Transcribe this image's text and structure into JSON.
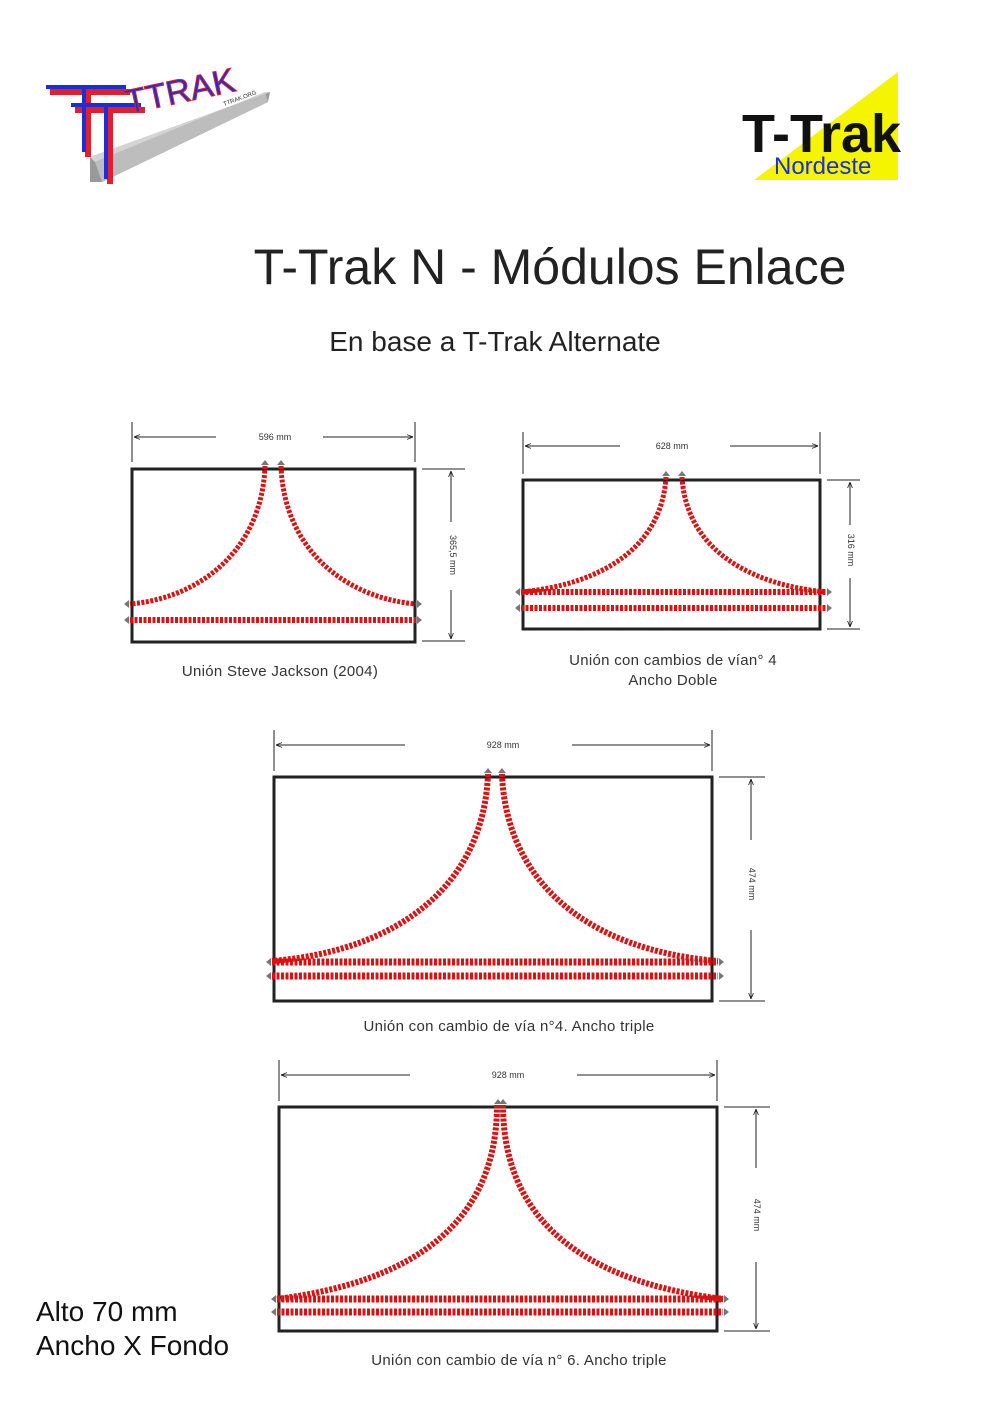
{
  "logos": {
    "left": {
      "text": "TTRAK",
      "small_text": "TTRAK.ORG"
    },
    "right": {
      "main": "T-Trak",
      "sub": "Nordeste"
    }
  },
  "title": "T-Trak N - Módulos Enlace",
  "subtitle": "En base a T-Trak Alternate",
  "modules": [
    {
      "width_label": "596 mm",
      "depth_label": "365,5 mm",
      "caption": "Unión Steve Jackson (2004)",
      "caption_line2": ""
    },
    {
      "width_label": "628 mm",
      "depth_label": "316 mm",
      "caption": "Unión con cambios de vían° 4",
      "caption_line2": "Ancho Doble"
    },
    {
      "width_label": "928 mm",
      "depth_label": "474 mm",
      "caption": "Unión con cambio de vía n°4. Ancho triple",
      "caption_line2": ""
    },
    {
      "width_label": "928 mm",
      "depth_label": "474 mm",
      "caption": "Unión con cambio de vía n° 6. Ancho triple",
      "caption_line2": ""
    }
  ],
  "notes": {
    "height": "Alto 70 mm",
    "size": "Ancho X Fondo"
  },
  "colors": {
    "track": "#dd1111",
    "frame": "#222222",
    "logo_blue": "#1a2fd8",
    "logo_red": "#e0202a",
    "logo_yellow": "#f5f500"
  }
}
